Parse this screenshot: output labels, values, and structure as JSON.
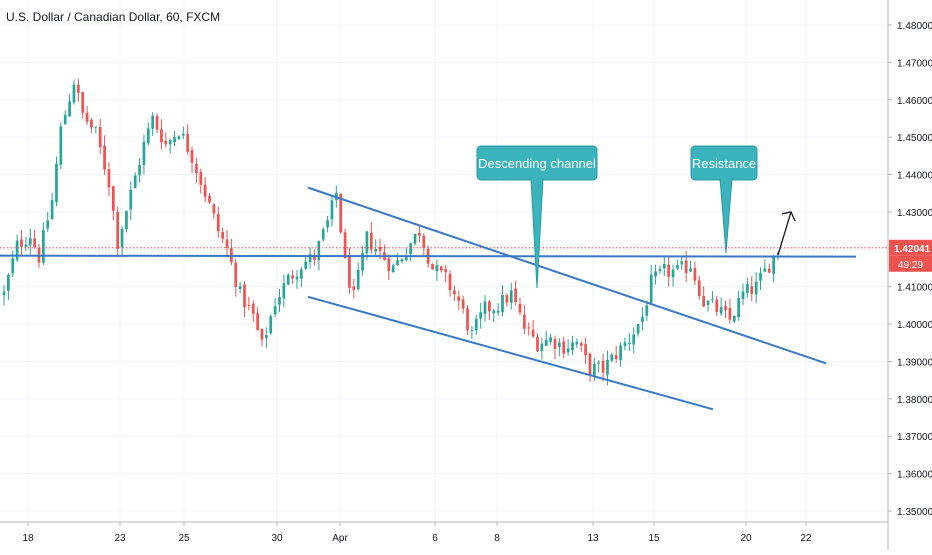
{
  "chart_data": {
    "type": "candlestick",
    "title": "U.S. Dollar / Canadian Dollar, 60, FXCM",
    "ylim": [
      1.3465,
      1.4855
    ],
    "y_ticks": [
      "1.48000",
      "1.47000",
      "1.46000",
      "1.45000",
      "1.44000",
      "1.43000",
      "1.42000",
      "1.41000",
      "1.40000",
      "1.39000",
      "1.38000",
      "1.37000",
      "1.36000",
      "1.35000"
    ],
    "x_ticks": [
      "18",
      "23",
      "25",
      "30",
      "Apr",
      "6",
      "8",
      "13",
      "15",
      "20",
      "22"
    ],
    "current_price": "1.42041",
    "countdown": "49:29",
    "up_color": "#26a69a",
    "down_color": "#ef5350",
    "line_color": "#3a78c3",
    "annotation_color": "#3bb3bd",
    "horizontal_support": 1.4183,
    "price_path_anchors": [
      [
        0,
        1.408
      ],
      [
        3,
        1.421
      ],
      [
        6,
        1.424
      ],
      [
        8,
        1.418
      ],
      [
        11,
        1.433
      ],
      [
        13,
        1.452
      ],
      [
        16,
        1.465
      ],
      [
        18,
        1.456
      ],
      [
        21,
        1.451
      ],
      [
        24,
        1.438
      ],
      [
        26,
        1.422
      ],
      [
        29,
        1.435
      ],
      [
        32,
        1.448
      ],
      [
        34,
        1.455
      ],
      [
        37,
        1.448
      ],
      [
        40,
        1.452
      ],
      [
        43,
        1.445
      ],
      [
        46,
        1.435
      ],
      [
        49,
        1.425
      ],
      [
        51,
        1.42
      ],
      [
        54,
        1.408
      ],
      [
        57,
        1.402
      ],
      [
        59,
        1.394
      ],
      [
        62,
        1.406
      ],
      [
        65,
        1.412
      ],
      [
        68,
        1.416
      ],
      [
        71,
        1.418
      ],
      [
        74,
        1.427
      ],
      [
        76,
        1.435
      ],
      [
        78,
        1.416
      ],
      [
        80,
        1.407
      ],
      [
        83,
        1.423
      ],
      [
        86,
        1.419
      ],
      [
        89,
        1.415
      ],
      [
        92,
        1.42
      ],
      [
        95,
        1.425
      ],
      [
        98,
        1.415
      ],
      [
        101,
        1.412
      ],
      [
        104,
        1.406
      ],
      [
        107,
        1.397
      ],
      [
        110,
        1.404
      ],
      [
        113,
        1.405
      ],
      [
        116,
        1.408
      ],
      [
        119,
        1.399
      ],
      [
        122,
        1.395
      ],
      [
        125,
        1.396
      ],
      [
        128,
        1.394
      ],
      [
        131,
        1.395
      ],
      [
        134,
        1.388
      ],
      [
        137,
        1.388
      ],
      [
        140,
        1.392
      ],
      [
        143,
        1.396
      ],
      [
        146,
        1.402
      ],
      [
        148,
        1.411
      ],
      [
        151,
        1.414
      ],
      [
        154,
        1.414
      ],
      [
        157,
        1.416
      ],
      [
        160,
        1.406
      ],
      [
        163,
        1.404
      ],
      [
        166,
        1.401
      ],
      [
        169,
        1.408
      ],
      [
        172,
        1.41
      ],
      [
        175,
        1.416
      ],
      [
        177,
        1.42
      ]
    ],
    "annotations": [
      {
        "id": "descending-channel",
        "label": "Descending channel"
      },
      {
        "id": "resistance",
        "label": "Resistance"
      }
    ]
  }
}
